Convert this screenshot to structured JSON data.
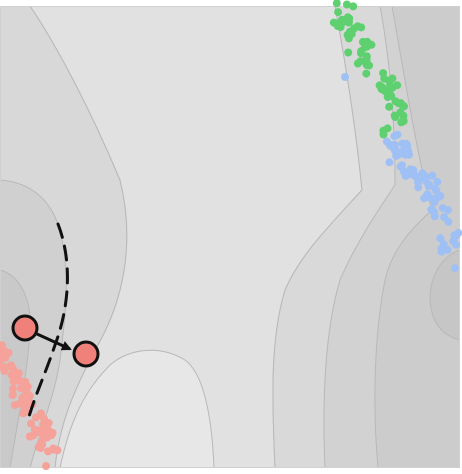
{
  "colors": {
    "background": "#ffffff",
    "contour_light": "#e3e3e3",
    "contour_mid": "#dcdcdc",
    "contour_mid2": "#d6d6d6",
    "contour_dark": "#cfcfcf",
    "contour_line": "#b5b5b5",
    "frame": "#d0d0d0",
    "cluster_red": "#f4a29a",
    "cluster_green": "#5fd06f",
    "cluster_blue": "#9fc0f5",
    "node_fill": "#f0817a",
    "node_stroke": "#111111",
    "arrow": "#111111",
    "trajectory": "#111111"
  },
  "icons": {
    "source_node": "circle",
    "target_node": "circle",
    "arrow": "arrowhead"
  }
}
